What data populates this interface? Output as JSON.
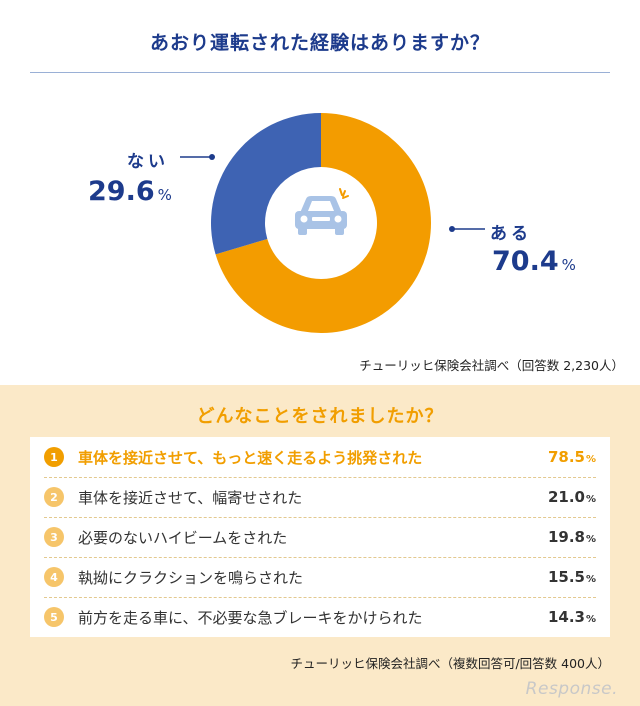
{
  "chart_data": [
    {
      "type": "pie",
      "title": "あおり運転された経験はありますか？",
      "slices": [
        {
          "label": "ある",
          "value": 70.4,
          "color": "#f39c00"
        },
        {
          "label": "ない",
          "value": 29.6,
          "color": "#3e63b3"
        }
      ],
      "unit": "%",
      "center_icon": "car-icon",
      "source": "チューリッヒ保険会社調べ（回答数 2,230人）"
    },
    {
      "type": "table",
      "title": "どんなことをされましたか？",
      "rows": [
        {
          "rank": "1",
          "label": "車体を接近させて、もっと速く走るよう挑発された",
          "value": "78.5",
          "unit": "%"
        },
        {
          "rank": "2",
          "label": "車体を接近させて、幅寄せされた",
          "value": "21.0",
          "unit": "%"
        },
        {
          "rank": "3",
          "label": "必要のないハイビームをされた",
          "value": "19.8",
          "unit": "%"
        },
        {
          "rank": "4",
          "label": "執拗にクラクションを鳴らされた",
          "value": "15.5",
          "unit": "%"
        },
        {
          "rank": "5",
          "label": "前方を走る車に、不必要な急ブレーキをかけられた",
          "value": "14.3",
          "unit": "%"
        }
      ],
      "source": "チューリッヒ保険会社調べ（複数回答可/回答数 400人）"
    }
  ],
  "watermark": "Response.",
  "colors": {
    "navy": "#1d3b8c",
    "orange": "#f19e00",
    "beige": "#fbe9c8"
  }
}
